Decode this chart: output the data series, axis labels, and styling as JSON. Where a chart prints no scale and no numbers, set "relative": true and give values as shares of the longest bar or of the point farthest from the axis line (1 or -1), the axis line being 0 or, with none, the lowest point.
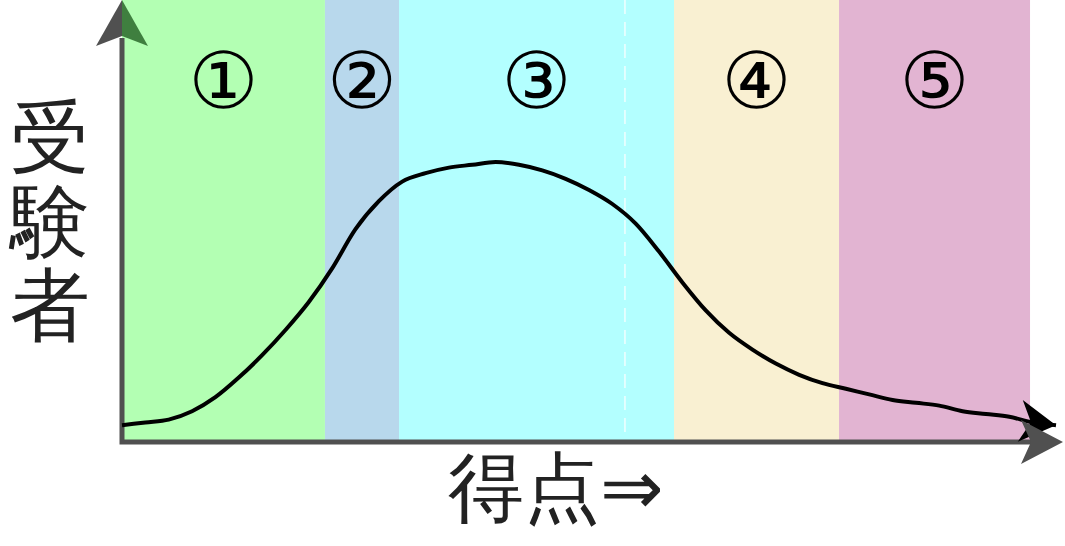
{
  "chart_data": {
    "type": "line",
    "xlabel": "得点⇒",
    "ylabel": "受験者",
    "annotations": [
      "①",
      "②",
      "③",
      "④",
      "⑤"
    ],
    "relative": true,
    "categories": [
      null,
      null,
      null,
      null,
      null,
      null,
      null,
      null,
      null,
      null,
      null,
      null,
      null,
      null,
      null,
      null,
      null,
      null,
      null,
      null,
      null,
      null,
      null,
      null,
      null,
      null,
      null,
      null,
      null,
      null,
      null,
      null,
      null,
      null,
      null,
      null,
      null,
      null,
      null,
      null,
      null
    ],
    "series": [
      {
        "color": "#000000",
        "values": [
          0.06,
          0.07,
          0.08,
          0.11,
          0.16,
          0.23,
          0.31,
          0.4,
          0.5,
          0.62,
          0.76,
          0.86,
          0.93,
          0.96,
          0.98,
          0.99,
          1.0,
          0.99,
          0.97,
          0.94,
          0.9,
          0.85,
          0.78,
          0.68,
          0.57,
          0.47,
          0.39,
          0.33,
          0.28,
          0.24,
          0.21,
          0.19,
          0.17,
          0.15,
          0.14,
          0.13,
          0.11,
          0.1,
          0.09,
          0.07,
          0.06
        ]
      }
    ],
    "tick_labels": false,
    "marker": "none",
    "line_style": "solid"
  }
}
